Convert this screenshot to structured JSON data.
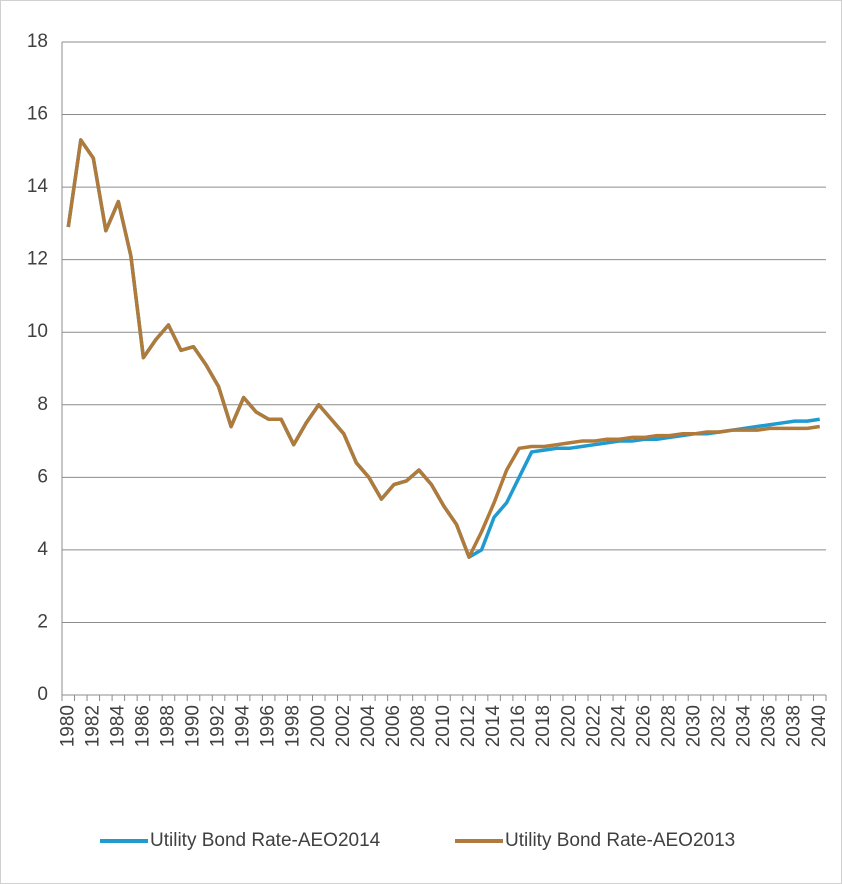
{
  "chart_data": {
    "type": "line",
    "categories": [
      "1980",
      null,
      "1982",
      null,
      "1984",
      null,
      "1986",
      null,
      "1988",
      null,
      "1990",
      null,
      "1992",
      null,
      "1994",
      null,
      "1996",
      null,
      "1998",
      null,
      "2000",
      null,
      "2002",
      null,
      "2004",
      null,
      "2006",
      null,
      "2008",
      null,
      "2010",
      null,
      "2012",
      null,
      "2014",
      null,
      "2016",
      null,
      "2018",
      null,
      "2020",
      null,
      "2022",
      null,
      "2024",
      null,
      "2026",
      null,
      "2028",
      null,
      "2030",
      null,
      "2032",
      null,
      "2034",
      null,
      "2036",
      null,
      "2038",
      null,
      "2040"
    ],
    "series": [
      {
        "name": "Utility Bond Rate-AEO2014",
        "color": "#1f9bd0",
        "values": [
          12.9,
          15.3,
          14.8,
          12.8,
          13.6,
          12.1,
          9.3,
          9.8,
          10.2,
          9.5,
          9.6,
          9.1,
          8.5,
          7.4,
          8.2,
          7.8,
          7.6,
          7.6,
          6.9,
          7.5,
          8.0,
          7.6,
          7.2,
          6.4,
          6.0,
          5.4,
          5.8,
          5.9,
          6.2,
          5.8,
          5.2,
          4.7,
          3.8,
          4.0,
          4.9,
          5.3,
          6.0,
          6.7,
          6.75,
          6.8,
          6.8,
          6.85,
          6.9,
          6.95,
          7.0,
          7.0,
          7.05,
          7.05,
          7.1,
          7.15,
          7.2,
          7.2,
          7.25,
          7.3,
          7.35,
          7.4,
          7.45,
          7.5,
          7.55,
          7.55,
          7.6
        ]
      },
      {
        "name": "Utility Bond Rate-AEO2013",
        "color": "#b07a3a",
        "values": [
          12.9,
          15.3,
          14.8,
          12.8,
          13.6,
          12.1,
          9.3,
          9.8,
          10.2,
          9.5,
          9.6,
          9.1,
          8.5,
          7.4,
          8.2,
          7.8,
          7.6,
          7.6,
          6.9,
          7.5,
          8.0,
          7.6,
          7.2,
          6.4,
          6.0,
          5.4,
          5.8,
          5.9,
          6.2,
          5.8,
          5.2,
          4.7,
          3.8,
          4.5,
          5.3,
          6.2,
          6.8,
          6.85,
          6.85,
          6.9,
          6.95,
          7.0,
          7.0,
          7.05,
          7.05,
          7.1,
          7.1,
          7.15,
          7.15,
          7.2,
          7.2,
          7.25,
          7.25,
          7.3,
          7.3,
          7.3,
          7.35,
          7.35,
          7.35,
          7.35,
          7.4
        ]
      }
    ],
    "ylim": [
      0,
      18
    ],
    "yticks": [
      0,
      2,
      4,
      6,
      8,
      10,
      12,
      14,
      16,
      18
    ],
    "grid": true,
    "legend": "bottom"
  }
}
